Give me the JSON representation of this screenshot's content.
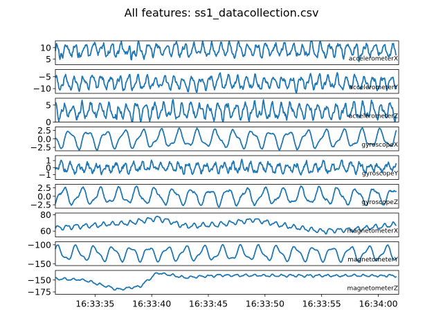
{
  "chart_data": {
    "type": "line",
    "title": "All features: ss1_datacollection.csv",
    "x": {
      "start": "16:33:31.5",
      "end": "16:34:01.5",
      "tick_labels": [
        "16:33:35",
        "16:33:40",
        "16:33:45",
        "16:33:50",
        "16:33:55",
        "16:34:00"
      ],
      "tick_seconds": [
        35,
        40,
        45,
        50,
        55,
        60
      ]
    },
    "series_color": "#1f77b4",
    "grid": false,
    "panels": [
      {
        "name": "accelerometerX",
        "ylim": [
          2.5,
          13
        ],
        "yticks": [
          5,
          10
        ],
        "ytick_labels": [
          "5",
          "10"
        ],
        "model": {
          "base": 9,
          "amp": 2.4,
          "freq": 1.25,
          "noise": 1.4,
          "dips": [
            [
              31.9,
              4.8
            ],
            [
              33.5,
              5.6
            ],
            [
              38.2,
              4.2
            ],
            [
              58.3,
              3.8
            ]
          ]
        }
      },
      {
        "name": "accelerometerY",
        "ylim": [
          -12,
          -2
        ],
        "yticks": [
          -5,
          -10
        ],
        "ytick_labels": [
          "−5",
          "−10"
        ],
        "model": {
          "base": -7.5,
          "amp": 2.3,
          "freq": 1.25,
          "noise": 1.2,
          "dips": [
            [
              31.9,
              -10.6
            ],
            [
              33.6,
              -11.2
            ]
          ]
        }
      },
      {
        "name": "accelerometerZ",
        "ylim": [
          0,
          7
        ],
        "yticks": [
          5,
          0
        ],
        "ytick_labels": [
          "5",
          "0"
        ],
        "model": {
          "base": 3.2,
          "amp": 1.9,
          "freq": 1.25,
          "noise": 1.0,
          "dips": [
            [
              36.9,
              0.6
            ],
            [
              61.8,
              0.8
            ]
          ]
        }
      },
      {
        "name": "gyroscopeX",
        "ylim": [
          -3.5,
          3.5
        ],
        "yticks": [
          2.5,
          0,
          -2.5
        ],
        "ytick_labels": [
          "2.5",
          "0.0",
          "−2.5"
        ],
        "model": {
          "base": 0,
          "amp": 2.3,
          "freq": 0.62,
          "noise": 0.25,
          "dips": []
        }
      },
      {
        "name": "gyroscopeY",
        "ylim": [
          -1.7,
          1.7
        ],
        "yticks": [
          1,
          0,
          -1
        ],
        "ytick_labels": [
          "1",
          "0",
          "−1"
        ],
        "model": {
          "base": 0,
          "amp": 0.55,
          "freq": 1.25,
          "noise": 0.45,
          "dips": []
        }
      },
      {
        "name": "gyroscopeZ",
        "ylim": [
          -3.5,
          3.5
        ],
        "yticks": [
          2.5,
          0,
          -2.5
        ],
        "ytick_labels": [
          "2.5",
          "0.0",
          "−2.5"
        ],
        "model": {
          "base": 0,
          "amp": 2.1,
          "freq": 0.62,
          "noise": 0.35,
          "dips": []
        }
      },
      {
        "name": "magnetometerX",
        "ylim": [
          53,
          82
        ],
        "yticks": [
          80,
          60
        ],
        "ytick_labels": [
          "80",
          "60"
        ],
        "model": {
          "base": 66,
          "amp": 2.5,
          "freq": 1.25,
          "noise": 0.6,
          "drift": [
            [
              31.5,
              64
            ],
            [
              38,
              70
            ],
            [
              40.5,
              76
            ],
            [
              43,
              66
            ],
            [
              46,
              68
            ],
            [
              49,
              74
            ],
            [
              52,
              66
            ],
            [
              55,
              60
            ],
            [
              58,
              62
            ],
            [
              61.5,
              68
            ]
          ]
        }
      },
      {
        "name": "magnetometerY",
        "ylim": [
          -155,
          -92
        ],
        "yticks": [
          -100,
          -150
        ],
        "ytick_labels": [
          "−100",
          "−150"
        ],
        "model": {
          "base": -123,
          "amp": 17,
          "freq": 0.62,
          "noise": 1.2,
          "dips": []
        }
      },
      {
        "name": "magnetometerZ",
        "ylim": [
          -180,
          -130
        ],
        "yticks": [
          -150,
          -175
        ],
        "ytick_labels": [
          "−150",
          "−175"
        ],
        "model": {
          "base": -150,
          "amp": 2,
          "freq": 1.25,
          "noise": 0.8,
          "drift": [
            [
              31.5,
              -147
            ],
            [
              34,
              -150
            ],
            [
              37,
              -170
            ],
            [
              39,
              -163
            ],
            [
              40.5,
              -135
            ],
            [
              43,
              -145
            ],
            [
              46,
              -140
            ],
            [
              52,
              -141
            ],
            [
              61.5,
              -141
            ]
          ]
        }
      }
    ]
  }
}
